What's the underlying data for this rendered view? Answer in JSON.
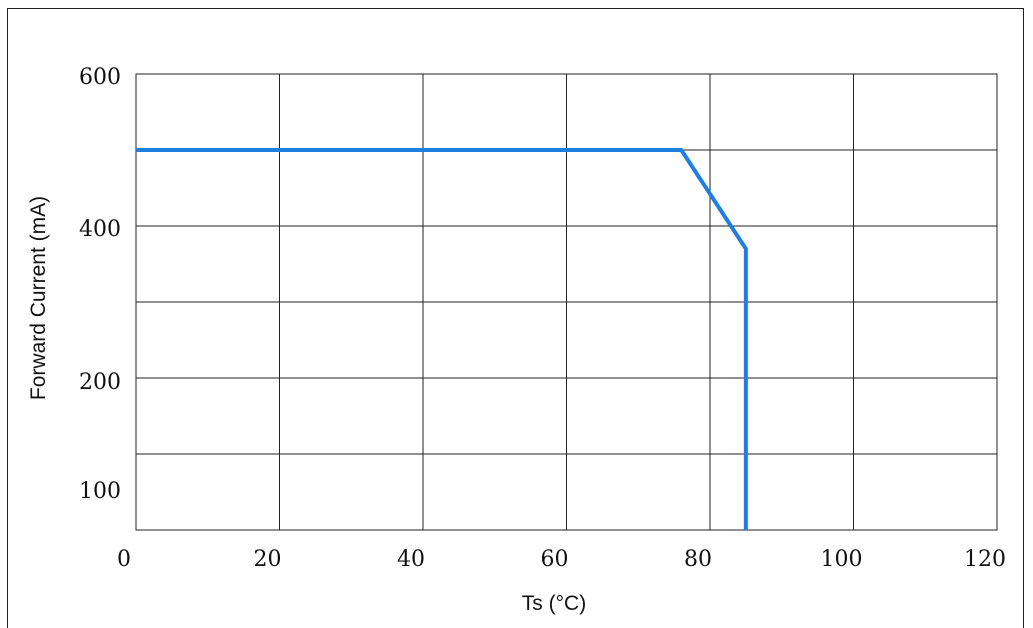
{
  "chart_data": {
    "type": "line",
    "xlabel": "Ts (°C)",
    "ylabel": "Forward Current (mA)",
    "xlim": [
      0,
      120
    ],
    "ylim": [
      0,
      600
    ],
    "x_ticks": [
      0,
      20,
      40,
      60,
      80,
      100,
      120
    ],
    "y_tick_labels": [
      "600",
      "400",
      "200",
      "100"
    ],
    "grid": true,
    "series": [
      {
        "color": "#1f7fe0",
        "x": [
          0,
          76,
          85,
          85
        ],
        "y": [
          500,
          500,
          370,
          0
        ]
      }
    ]
  }
}
